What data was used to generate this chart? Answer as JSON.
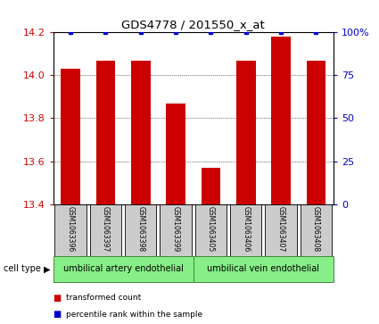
{
  "title": "GDS4778 / 201550_x_at",
  "samples": [
    "GSM1063396",
    "GSM1063397",
    "GSM1063398",
    "GSM1063399",
    "GSM1063405",
    "GSM1063406",
    "GSM1063407",
    "GSM1063408"
  ],
  "bar_values": [
    14.03,
    14.07,
    14.07,
    13.87,
    13.57,
    14.07,
    14.18,
    14.07
  ],
  "percentile_values": [
    100,
    100,
    100,
    100,
    100,
    100,
    100,
    100
  ],
  "ylim": [
    13.4,
    14.2
  ],
  "yticks": [
    13.4,
    13.6,
    13.8,
    14.0,
    14.2
  ],
  "right_yticks": [
    0,
    25,
    50,
    75,
    100
  ],
  "right_ylabels": [
    "0",
    "25",
    "50",
    "75",
    "100%"
  ],
  "bar_color": "#cc0000",
  "percentile_color": "#0000cc",
  "group1_label": "umbilical artery endothelial",
  "group2_label": "umbilical vein endothelial",
  "group1_indices": [
    0,
    1,
    2,
    3
  ],
  "group2_indices": [
    4,
    5,
    6,
    7
  ],
  "cell_type_label": "cell type",
  "legend_bar_label": "transformed count",
  "legend_dot_label": "percentile rank within the sample",
  "group_bg_color": "#88ee88",
  "sample_bg_color": "#cccccc",
  "bar_width": 0.55,
  "base_value": 13.4,
  "bg_color": "#ffffff"
}
